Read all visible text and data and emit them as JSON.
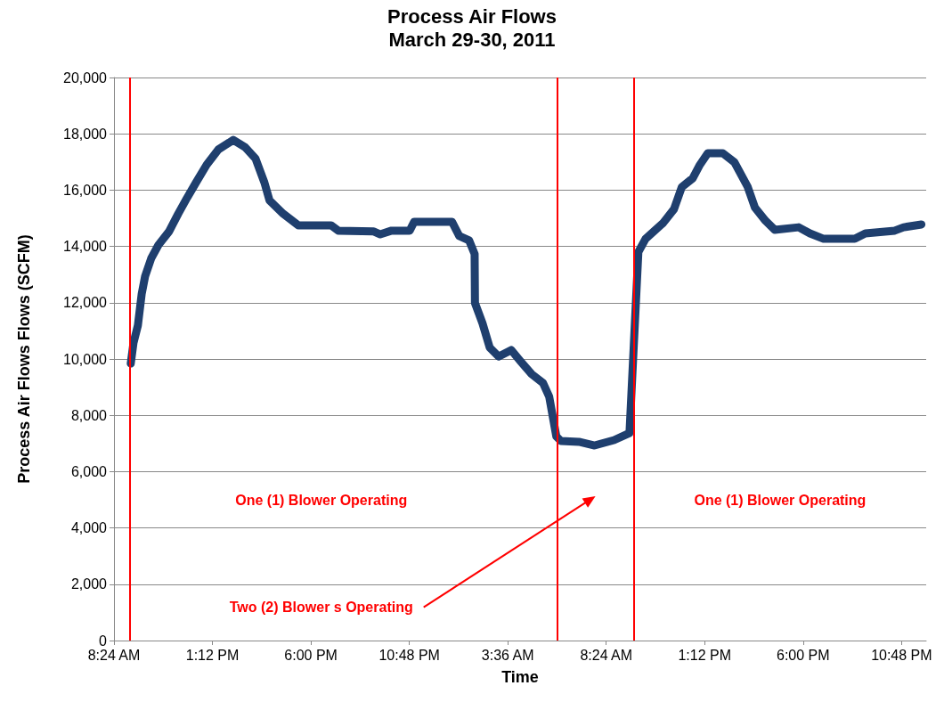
{
  "chart_data": {
    "type": "line",
    "title": "Process Air Flows",
    "subtitle": "March 29-30, 2011",
    "xlabel": "Time",
    "ylabel": "Process Air Flows Flows (SCFM)",
    "series": [
      {
        "color": "#1f3f6e",
        "x": [
          "2011-03-29T09:13",
          "2011-03-29T09:21",
          "2011-03-29T09:34",
          "2011-03-29T09:45",
          "2011-03-29T09:55",
          "2011-03-29T10:13",
          "2011-03-29T10:34",
          "2011-03-29T11:05",
          "2011-03-29T11:32",
          "2011-03-29T11:58",
          "2011-03-29T12:24",
          "2011-03-29T12:55",
          "2011-03-29T13:29",
          "2011-03-29T14:13",
          "2011-03-29T14:47",
          "2011-03-29T15:18",
          "2011-03-29T15:44",
          "2011-03-29T15:59",
          "2011-03-29T16:39",
          "2011-03-29T17:23",
          "2011-03-29T18:02",
          "2011-03-29T18:59",
          "2011-03-29T19:20",
          "2011-03-29T21:04",
          "2011-03-29T21:23",
          "2011-03-29T21:56",
          "2011-03-29T22:49",
          "2011-03-29T23:02",
          "2011-03-30T00:53",
          "2011-03-30T01:14",
          "2011-03-30T01:43",
          "2011-03-30T01:59",
          "2011-03-30T02:00",
          "2011-03-30T02:22",
          "2011-03-30T02:43",
          "2011-03-30T03:09",
          "2011-03-30T03:46",
          "2011-03-30T04:14",
          "2011-03-30T04:46",
          "2011-03-30T05:19",
          "2011-03-30T05:37",
          "2011-03-30T05:58",
          "2011-03-30T06:11",
          "2011-03-30T07:04",
          "2011-03-30T07:50",
          "2011-03-30T08:47",
          "2011-03-30T09:32",
          "2011-03-30T09:58",
          "2011-03-30T10:19",
          "2011-03-30T11:11",
          "2011-03-30T11:42",
          "2011-03-30T12:05",
          "2011-03-30T12:37",
          "2011-03-30T12:58",
          "2011-03-30T13:21",
          "2011-03-30T14:05",
          "2011-03-30T14:39",
          "2011-03-30T15:18",
          "2011-03-30T15:39",
          "2011-03-30T16:10",
          "2011-03-30T16:37",
          "2011-03-30T17:47",
          "2011-03-30T18:20",
          "2011-03-30T19:00",
          "2011-03-30T20:31",
          "2011-03-30T21:02",
          "2011-03-30T22:28",
          "2011-03-30T22:54",
          "2011-03-30T23:46"
        ],
        "values": [
          9840,
          10570,
          11200,
          12310,
          12940,
          13580,
          14050,
          14530,
          15160,
          15730,
          16270,
          16900,
          17440,
          17780,
          17530,
          17120,
          16270,
          15630,
          15160,
          14750,
          14750,
          14750,
          14560,
          14530,
          14430,
          14560,
          14560,
          14870,
          14870,
          14370,
          14210,
          13730,
          11990,
          11270,
          10410,
          10090,
          10320,
          9910,
          9460,
          9150,
          8670,
          7250,
          7090,
          7060,
          6930,
          7120,
          7370,
          13800,
          14270,
          14840,
          15320,
          16110,
          16420,
          16900,
          17310,
          17310,
          16990,
          16110,
          15380,
          14910,
          14590,
          14680,
          14460,
          14270,
          14270,
          14460,
          14560,
          14680,
          14780
        ]
      }
    ],
    "xlim": [
      "2011-03-29T08:24",
      "2011-03-31T00:00"
    ],
    "xticks": [
      {
        "value": "2011-03-29T08:24",
        "label": "8:24 AM"
      },
      {
        "value": "2011-03-29T13:12",
        "label": "1:12 PM"
      },
      {
        "value": "2011-03-29T18:00",
        "label": "6:00 PM"
      },
      {
        "value": "2011-03-29T22:48",
        "label": "10:48 PM"
      },
      {
        "value": "2011-03-30T03:36",
        "label": "3:36 AM"
      },
      {
        "value": "2011-03-30T08:24",
        "label": "8:24 AM"
      },
      {
        "value": "2011-03-30T13:12",
        "label": "1:12 PM"
      },
      {
        "value": "2011-03-30T18:00",
        "label": "6:00 PM"
      },
      {
        "value": "2011-03-30T22:48",
        "label": "10:48 PM"
      }
    ],
    "ylim": [
      0,
      20000
    ],
    "yticks": [
      {
        "value": 0,
        "label": "0"
      },
      {
        "value": 2000,
        "label": "2,000"
      },
      {
        "value": 4000,
        "label": "4,000"
      },
      {
        "value": 6000,
        "label": "6,000"
      },
      {
        "value": 8000,
        "label": "8,000"
      },
      {
        "value": 10000,
        "label": "10,000"
      },
      {
        "value": 12000,
        "label": "12,000"
      },
      {
        "value": 14000,
        "label": "14,000"
      },
      {
        "value": 16000,
        "label": "16,000"
      },
      {
        "value": 18000,
        "label": "18,000"
      },
      {
        "value": 20000,
        "label": "20,000"
      }
    ],
    "grid": "y",
    "line_style": "solid",
    "ref_lines": [
      {
        "axis": "x",
        "value": "2011-03-29T09:11",
        "color": "#ff0000"
      },
      {
        "axis": "x",
        "value": "2011-03-30T06:00",
        "color": "#ff0000"
      },
      {
        "axis": "x",
        "value": "2011-03-30T09:45",
        "color": "#ff0000"
      }
    ],
    "annotations": [
      "One (1) Blower Operating",
      "Two (2) Blower s Operating",
      "One (1) Blower Operating"
    ]
  }
}
